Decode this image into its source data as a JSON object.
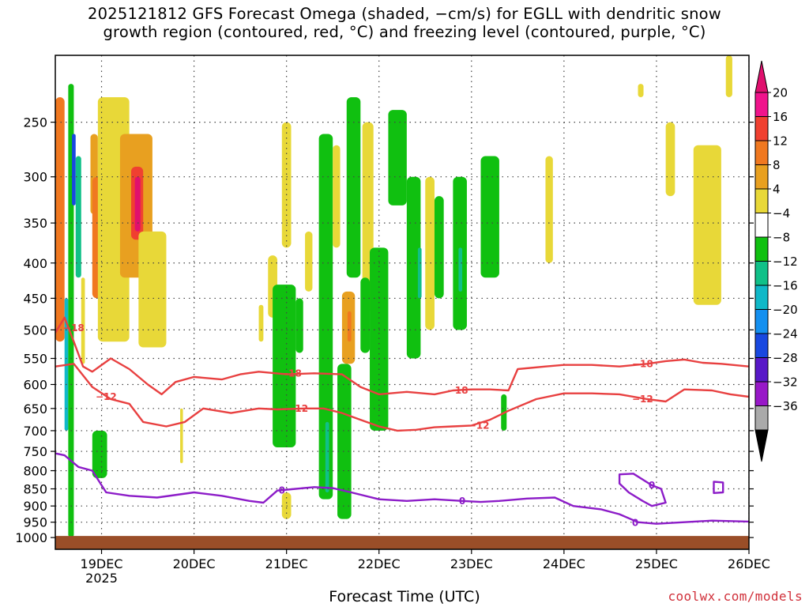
{
  "page_title": "2025121812 GFS Forecast Omega (shaded, −cm/s) for EGLL with dendritic snow growth region (contoured, red, °C) and freezing level (contoured, purple, °C)",
  "title_line1": "2025121812 GFS Forecast Omega (shaded, −cm/s) for EGLL with dendritic snow",
  "title_line2": "growth region (contoured, red, °C) and freezing level (contoured, purple, °C)",
  "credit": "coolwx.com/models",
  "chart_data": {
    "type": "heatmap",
    "title": "2025121812 GFS Forecast Omega (shaded, −cm/s) for EGLL with dendritic snow growth region (contoured, red, °C) and freezing level (contoured, purple, °C)",
    "xlabel": "Forecast Time (UTC)",
    "ylabel": "",
    "x_unit": "day",
    "xlim": [
      18.5,
      26.0
    ],
    "x_ticks": [
      {
        "value": 19,
        "label": "19DEC"
      },
      {
        "value": 20,
        "label": "20DEC"
      },
      {
        "value": 21,
        "label": "21DEC"
      },
      {
        "value": 22,
        "label": "22DEC"
      },
      {
        "value": 23,
        "label": "23DEC"
      },
      {
        "value": 24,
        "label": "24DEC"
      },
      {
        "value": 25,
        "label": "25DEC"
      },
      {
        "value": 26,
        "label": "26DEC"
      }
    ],
    "x_year_label": "2025",
    "y_scale": "log",
    "ylim": [
      1040,
      200
    ],
    "y_ticks": [
      250,
      300,
      350,
      400,
      450,
      500,
      550,
      600,
      650,
      700,
      750,
      800,
      850,
      900,
      950,
      1000
    ],
    "grid": true,
    "colorbar": {
      "levels": [
        -36,
        -32,
        -28,
        -24,
        -20,
        -16,
        -12,
        -8,
        -4,
        4,
        8,
        12,
        16,
        20
      ],
      "labels": [
        "20",
        "16",
        "12",
        "8",
        "4",
        "−4",
        "−8",
        "−12",
        "−16",
        "−20",
        "−24",
        "−28",
        "−32",
        "−36"
      ],
      "colors": [
        "#f0148c",
        "#f04030",
        "#f07820",
        "#e8a020",
        "#e8d838",
        "#ffffff",
        "#10c010",
        "#10c088",
        "#10b8c8",
        "#1490f0",
        "#1848e0",
        "#5818c8",
        "#9818c8",
        "#aaaaaa"
      ],
      "top_arrow_color": "#e0106e",
      "bottom_arrow_color": "#000000"
    },
    "omega_regions": [
      {
        "t0": 18.5,
        "t1": 18.6,
        "p0": 230,
        "p1": 520,
        "value": 12
      },
      {
        "t0": 18.6,
        "t1": 18.64,
        "p0": 450,
        "p1": 700,
        "value": -14
      },
      {
        "t0": 18.64,
        "t1": 18.7,
        "p0": 220,
        "p1": 1000,
        "value": -6
      },
      {
        "t0": 18.68,
        "t1": 18.72,
        "p0": 260,
        "p1": 330,
        "value": -24
      },
      {
        "t0": 18.72,
        "t1": 18.78,
        "p0": 280,
        "p1": 420,
        "value": -10
      },
      {
        "t0": 18.78,
        "t1": 18.82,
        "p0": 420,
        "p1": 560,
        "value": 6
      },
      {
        "t0": 18.88,
        "t1": 18.96,
        "p0": 260,
        "p1": 340,
        "value": 8
      },
      {
        "t0": 18.9,
        "t1": 19.15,
        "p0": 300,
        "p1": 450,
        "value": 12
      },
      {
        "t0": 19.0,
        "t1": 19.1,
        "p0": 320,
        "p1": 420,
        "value": 16
      },
      {
        "t0": 18.96,
        "t1": 19.3,
        "p0": 230,
        "p1": 520,
        "value": 6
      },
      {
        "t0": 19.2,
        "t1": 19.55,
        "p0": 260,
        "p1": 420,
        "value": 10
      },
      {
        "t0": 19.32,
        "t1": 19.45,
        "p0": 290,
        "p1": 370,
        "value": 16
      },
      {
        "t0": 19.36,
        "t1": 19.42,
        "p0": 300,
        "p1": 360,
        "value": 20
      },
      {
        "t0": 19.4,
        "t1": 19.7,
        "p0": 360,
        "p1": 530,
        "value": 5
      },
      {
        "t0": 18.9,
        "t1": 19.06,
        "p0": 700,
        "p1": 820,
        "value": -6
      },
      {
        "t0": 19.85,
        "t1": 19.88,
        "p0": 650,
        "p1": 780,
        "value": 5
      },
      {
        "t0": 20.7,
        "t1": 20.75,
        "p0": 460,
        "p1": 520,
        "value": 5
      },
      {
        "t0": 20.8,
        "t1": 20.9,
        "p0": 390,
        "p1": 480,
        "value": 5
      },
      {
        "t0": 20.95,
        "t1": 21.05,
        "p0": 250,
        "p1": 380,
        "value": 5
      },
      {
        "t0": 20.85,
        "t1": 21.1,
        "p0": 430,
        "p1": 740,
        "value": -6
      },
      {
        "t0": 20.95,
        "t1": 21.05,
        "p0": 860,
        "p1": 940,
        "value": 5
      },
      {
        "t0": 21.1,
        "t1": 21.18,
        "p0": 450,
        "p1": 540,
        "value": -6
      },
      {
        "t0": 21.2,
        "t1": 21.28,
        "p0": 360,
        "p1": 440,
        "value": 5
      },
      {
        "t0": 21.35,
        "t1": 21.5,
        "p0": 260,
        "p1": 880,
        "value": -6
      },
      {
        "t0": 21.42,
        "t1": 21.46,
        "p0": 680,
        "p1": 860,
        "value": -12
      },
      {
        "t0": 21.5,
        "t1": 21.58,
        "p0": 270,
        "p1": 380,
        "value": 5
      },
      {
        "t0": 21.55,
        "t1": 21.7,
        "p0": 560,
        "p1": 940,
        "value": -6
      },
      {
        "t0": 21.6,
        "t1": 21.74,
        "p0": 440,
        "p1": 560,
        "value": 8
      },
      {
        "t0": 21.66,
        "t1": 21.7,
        "p0": 470,
        "p1": 520,
        "value": 14
      },
      {
        "t0": 21.65,
        "t1": 21.8,
        "p0": 230,
        "p1": 420,
        "value": -6
      },
      {
        "t0": 21.82,
        "t1": 21.94,
        "p0": 250,
        "p1": 470,
        "value": 5
      },
      {
        "t0": 21.8,
        "t1": 21.9,
        "p0": 420,
        "p1": 540,
        "value": -6
      },
      {
        "t0": 21.9,
        "t1": 22.1,
        "p0": 380,
        "p1": 700,
        "value": -6
      },
      {
        "t0": 22.1,
        "t1": 22.3,
        "p0": 240,
        "p1": 330,
        "value": -6
      },
      {
        "t0": 22.3,
        "t1": 22.45,
        "p0": 300,
        "p1": 550,
        "value": -6
      },
      {
        "t0": 22.42,
        "t1": 22.46,
        "p0": 380,
        "p1": 450,
        "value": -12
      },
      {
        "t0": 22.5,
        "t1": 22.6,
        "p0": 300,
        "p1": 500,
        "value": 5
      },
      {
        "t0": 22.6,
        "t1": 22.7,
        "p0": 320,
        "p1": 450,
        "value": -6
      },
      {
        "t0": 22.8,
        "t1": 22.95,
        "p0": 300,
        "p1": 500,
        "value": -6
      },
      {
        "t0": 22.86,
        "t1": 22.9,
        "p0": 380,
        "p1": 440,
        "value": -12
      },
      {
        "t0": 23.1,
        "t1": 23.3,
        "p0": 280,
        "p1": 420,
        "value": -6
      },
      {
        "t0": 23.32,
        "t1": 23.38,
        "p0": 620,
        "p1": 700,
        "value": -6
      },
      {
        "t0": 23.8,
        "t1": 23.88,
        "p0": 280,
        "p1": 400,
        "value": 5
      },
      {
        "t0": 24.8,
        "t1": 24.86,
        "p0": 220,
        "p1": 230,
        "value": 5
      },
      {
        "t0": 25.1,
        "t1": 25.2,
        "p0": 250,
        "p1": 320,
        "value": 5
      },
      {
        "t0": 25.4,
        "t1": 25.7,
        "p0": 270,
        "p1": 460,
        "value": 5
      },
      {
        "t0": 25.75,
        "t1": 25.82,
        "p0": 200,
        "p1": 230,
        "value": 5
      }
    ],
    "contours": [
      {
        "label": "-18",
        "color": "#e84040",
        "points": [
          [
            18.5,
            505
          ],
          [
            18.6,
            480
          ],
          [
            18.7,
            520
          ],
          [
            18.8,
            565
          ],
          [
            18.9,
            575
          ],
          [
            19.1,
            550
          ],
          [
            19.3,
            570
          ],
          [
            19.5,
            600
          ],
          [
            19.65,
            620
          ],
          [
            19.8,
            595
          ],
          [
            20.0,
            585
          ],
          [
            20.3,
            590
          ],
          [
            20.5,
            580
          ],
          [
            20.7,
            575
          ],
          [
            21.0,
            580
          ],
          [
            21.3,
            578
          ],
          [
            21.6,
            580
          ],
          [
            21.8,
            605
          ],
          [
            22.0,
            620
          ],
          [
            22.3,
            615
          ],
          [
            22.6,
            620
          ],
          [
            22.8,
            612
          ],
          [
            23.0,
            610
          ],
          [
            23.2,
            610
          ],
          [
            23.4,
            612
          ],
          [
            23.5,
            570
          ],
          [
            23.8,
            565
          ],
          [
            24.0,
            562
          ],
          [
            24.3,
            562
          ],
          [
            24.6,
            565
          ],
          [
            24.9,
            560
          ],
          [
            25.1,
            555
          ],
          [
            25.3,
            552
          ],
          [
            25.5,
            558
          ],
          [
            25.7,
            560
          ],
          [
            26.0,
            565
          ]
        ],
        "label_at": [
          [
            18.7,
            497
          ],
          [
            21.05,
            578
          ],
          [
            22.85,
            612
          ],
          [
            24.85,
            560
          ]
        ]
      },
      {
        "label": "-12",
        "color": "#e84040",
        "points": [
          [
            18.5,
            565
          ],
          [
            18.7,
            560
          ],
          [
            18.9,
            605
          ],
          [
            19.1,
            630
          ],
          [
            19.3,
            640
          ],
          [
            19.45,
            680
          ],
          [
            19.7,
            690
          ],
          [
            19.9,
            680
          ],
          [
            20.1,
            650
          ],
          [
            20.4,
            660
          ],
          [
            20.7,
            650
          ],
          [
            20.9,
            652
          ],
          [
            21.2,
            650
          ],
          [
            21.4,
            650
          ],
          [
            21.6,
            660
          ],
          [
            21.8,
            675
          ],
          [
            22.0,
            690
          ],
          [
            22.2,
            700
          ],
          [
            22.4,
            698
          ],
          [
            22.6,
            692
          ],
          [
            22.8,
            690
          ],
          [
            23.0,
            688
          ],
          [
            23.2,
            675
          ],
          [
            23.4,
            655
          ],
          [
            23.7,
            630
          ],
          [
            24.0,
            618
          ],
          [
            24.3,
            618
          ],
          [
            24.6,
            620
          ],
          [
            24.9,
            630
          ],
          [
            25.1,
            635
          ],
          [
            25.3,
            610
          ],
          [
            25.6,
            612
          ],
          [
            25.8,
            620
          ],
          [
            26.0,
            625
          ]
        ],
        "label_at": [
          [
            19.05,
            625
          ],
          [
            21.12,
            650
          ],
          [
            23.08,
            688
          ],
          [
            24.85,
            630
          ]
        ]
      },
      {
        "label": "0",
        "color": "#8c1cc8",
        "points": [
          [
            18.5,
            755
          ],
          [
            18.6,
            760
          ],
          [
            18.75,
            790
          ],
          [
            18.9,
            800
          ],
          [
            19.05,
            860
          ],
          [
            19.3,
            870
          ],
          [
            19.6,
            875
          ],
          [
            20.0,
            860
          ],
          [
            20.3,
            870
          ],
          [
            20.6,
            885
          ],
          [
            20.75,
            890
          ],
          [
            20.9,
            855
          ],
          [
            21.1,
            850
          ],
          [
            21.3,
            845
          ],
          [
            21.5,
            848
          ],
          [
            21.7,
            860
          ],
          [
            22.0,
            880
          ],
          [
            22.3,
            885
          ],
          [
            22.6,
            880
          ],
          [
            22.9,
            885
          ],
          [
            23.1,
            888
          ],
          [
            23.3,
            885
          ],
          [
            23.6,
            878
          ],
          [
            23.9,
            875
          ],
          [
            24.1,
            900
          ],
          [
            24.4,
            910
          ],
          [
            24.6,
            925
          ],
          [
            24.8,
            950
          ],
          [
            25.0,
            955
          ],
          [
            25.3,
            950
          ],
          [
            25.6,
            945
          ],
          [
            26.0,
            948
          ]
        ],
        "label_at": [
          [
            20.95,
            855
          ],
          [
            22.9,
            885
          ],
          [
            24.77,
            952
          ]
        ],
        "closed": [
          {
            "points": [
              [
                24.6,
                810
              ],
              [
                24.75,
                808
              ],
              [
                24.95,
                840
              ],
              [
                25.05,
                850
              ],
              [
                25.1,
                890
              ],
              [
                24.95,
                900
              ],
              [
                24.85,
                885
              ],
              [
                24.7,
                860
              ],
              [
                24.6,
                835
              ],
              [
                24.6,
                810
              ]
            ],
            "label_at": [
              24.95,
              840
            ]
          },
          {
            "points": [
              [
                25.62,
                830
              ],
              [
                25.72,
                832
              ],
              [
                25.72,
                860
              ],
              [
                25.62,
                862
              ],
              [
                25.62,
                830
              ]
            ]
          }
        ]
      }
    ],
    "surface": {
      "color": "#9a4e28",
      "pressure_top": 1000
    }
  }
}
